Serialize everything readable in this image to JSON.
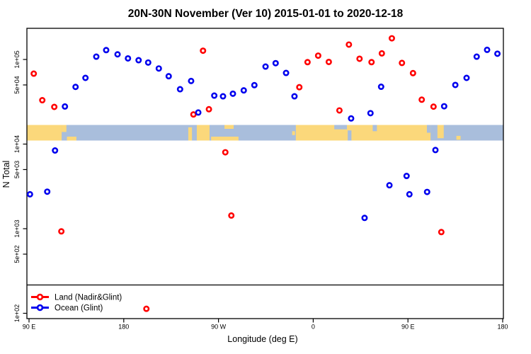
{
  "header": {
    "title": "20N-30N November (Ver 10)   2015-01-01 to 2020-12-18"
  },
  "axis": {
    "x": {
      "label": "Longitude (deg E)"
    },
    "y": {
      "label": "N Total"
    }
  },
  "legend": {
    "items": [
      {
        "label": "Land (Nadir&Glint)",
        "color": "#ff0000"
      },
      {
        "label": "Ocean (Glint)",
        "color": "#0000ee"
      }
    ]
  },
  "colors": {
    "land_point": "#ff0000",
    "ocean_point": "#0000ee",
    "map_land": "#fbd87b",
    "map_ocean": "#a9bedc",
    "frame": "#000000"
  },
  "chart_data": {
    "type": "scatter",
    "title": "20N-30N November (Ver 10)   2015-01-01 to 2020-12-18",
    "xlabel": "Longitude (deg E)",
    "ylabel": "N Total",
    "x_axis": {
      "units": "deg E (wrapping eastward)",
      "range": [
        90,
        540
      ],
      "ticks": [
        {
          "lon": 90,
          "label": "90 E"
        },
        {
          "lon": 180,
          "label": "180"
        },
        {
          "lon": 270,
          "label": "90 W"
        },
        {
          "lon": 360,
          "label": "0"
        },
        {
          "lon": 450,
          "label": "90 E"
        },
        {
          "lon": 540,
          "label": "180"
        }
      ]
    },
    "y_axis": {
      "scale": "log10",
      "ticks": [
        {
          "value": 100000,
          "label": "1e+05"
        },
        {
          "value": 50000,
          "label": "5e+04"
        },
        {
          "value": 10000,
          "label": "1e+04"
        },
        {
          "value": 5000,
          "label": "5e+03"
        },
        {
          "value": 1000,
          "label": "1e+03"
        },
        {
          "value": 500,
          "label": "5e+02"
        },
        {
          "value": 100,
          "label": "1e+02"
        }
      ]
    },
    "series": [
      {
        "name": "Land (Nadir&Glint)",
        "color": "#ff0000",
        "marker": "open-circle",
        "points": [
          {
            "lon": 94.5,
            "n": 68000
          },
          {
            "lon": 102.6,
            "n": 33000
          },
          {
            "lon": 114.0,
            "n": 27500
          },
          {
            "lon": 120.7,
            "n": 930
          },
          {
            "lon": 201.5,
            "n": 113
          },
          {
            "lon": 246.2,
            "n": 22400
          },
          {
            "lon": 255.3,
            "n": 127000
          },
          {
            "lon": 260.9,
            "n": 25800
          },
          {
            "lon": 276.5,
            "n": 8000
          },
          {
            "lon": 282.2,
            "n": 1430
          },
          {
            "lon": 346.8,
            "n": 47000
          },
          {
            "lon": 354.6,
            "n": 93000
          },
          {
            "lon": 364.7,
            "n": 111000
          },
          {
            "lon": 374.8,
            "n": 93500
          },
          {
            "lon": 384.9,
            "n": 25000
          },
          {
            "lon": 393.9,
            "n": 150000
          },
          {
            "lon": 404.0,
            "n": 102000
          },
          {
            "lon": 415.4,
            "n": 93000
          },
          {
            "lon": 425.2,
            "n": 118000
          },
          {
            "lon": 434.7,
            "n": 178000
          },
          {
            "lon": 444.3,
            "n": 91000
          },
          {
            "lon": 454.8,
            "n": 69000
          },
          {
            "lon": 463.1,
            "n": 33500
          },
          {
            "lon": 474.3,
            "n": 27700
          },
          {
            "lon": 481.7,
            "n": 912
          }
        ]
      },
      {
        "name": "Ocean (Glint)",
        "color": "#0000ee",
        "marker": "open-circle",
        "points": [
          {
            "lon": 90.9,
            "n": 2550
          },
          {
            "lon": 107.3,
            "n": 2740
          },
          {
            "lon": 114.7,
            "n": 8400
          },
          {
            "lon": 124.1,
            "n": 27800
          },
          {
            "lon": 134.2,
            "n": 47400
          },
          {
            "lon": 143.6,
            "n": 60600
          },
          {
            "lon": 153.9,
            "n": 108000
          },
          {
            "lon": 163.3,
            "n": 129000
          },
          {
            "lon": 174.1,
            "n": 115000
          },
          {
            "lon": 184.0,
            "n": 103000
          },
          {
            "lon": 194.1,
            "n": 98000
          },
          {
            "lon": 203.2,
            "n": 92000
          },
          {
            "lon": 213.3,
            "n": 78300
          },
          {
            "lon": 222.7,
            "n": 63400
          },
          {
            "lon": 233.5,
            "n": 44500
          },
          {
            "lon": 244.0,
            "n": 55700
          },
          {
            "lon": 250.8,
            "n": 23600
          },
          {
            "lon": 266.0,
            "n": 37400
          },
          {
            "lon": 274.3,
            "n": 36700
          },
          {
            "lon": 283.7,
            "n": 39400
          },
          {
            "lon": 294.0,
            "n": 43100
          },
          {
            "lon": 304.1,
            "n": 49700
          },
          {
            "lon": 314.7,
            "n": 82400
          },
          {
            "lon": 324.3,
            "n": 90400
          },
          {
            "lon": 334.2,
            "n": 69300
          },
          {
            "lon": 342.2,
            "n": 36700
          },
          {
            "lon": 396.0,
            "n": 20100
          },
          {
            "lon": 408.8,
            "n": 1340
          },
          {
            "lon": 414.4,
            "n": 23200
          },
          {
            "lon": 424.5,
            "n": 47600
          },
          {
            "lon": 432.4,
            "n": 3260
          },
          {
            "lon": 448.7,
            "n": 4200
          },
          {
            "lon": 451.4,
            "n": 2550
          },
          {
            "lon": 468.2,
            "n": 2720
          },
          {
            "lon": 476.1,
            "n": 8500
          },
          {
            "lon": 484.4,
            "n": 28000
          },
          {
            "lon": 495.0,
            "n": 50000
          },
          {
            "lon": 505.7,
            "n": 60600
          },
          {
            "lon": 515.3,
            "n": 108000
          },
          {
            "lon": 525.2,
            "n": 130000
          },
          {
            "lon": 535.0,
            "n": 117000
          }
        ]
      }
    ],
    "map_strip": {
      "description": "land/ocean band for 20N-30N drawn across plot",
      "ocean_color": "#a9bedc",
      "land_color": "#fbd87b",
      "land_segments": [
        {
          "lon": [
            88.0,
            121.0
          ],
          "frac": [
            0,
            1
          ]
        },
        {
          "lon": [
            121.0,
            125.5
          ],
          "frac": [
            0,
            0.45
          ]
        },
        {
          "lon": [
            126.0,
            135.0
          ],
          "frac": [
            0.75,
            1
          ]
        },
        {
          "lon": [
            241.3,
            244.8
          ],
          "frac": [
            0.15,
            1
          ]
        },
        {
          "lon": [
            249.4,
            261.5
          ],
          "frac": [
            0,
            1
          ]
        },
        {
          "lon": [
            263.0,
            289.0
          ],
          "frac": [
            0.75,
            1
          ]
        },
        {
          "lon": [
            275.7,
            284.4
          ],
          "frac": [
            0,
            0.25
          ]
        },
        {
          "lon": [
            340.0,
            342.7
          ],
          "frac": [
            0.4,
            0.65
          ]
        },
        {
          "lon": [
            343.5,
            471.5
          ],
          "frac": [
            0,
            1
          ]
        },
        {
          "lon": [
            478.0,
            484.0
          ],
          "frac": [
            0,
            0.85
          ]
        },
        {
          "lon": [
            496.0,
            500.0
          ],
          "frac": [
            0.7,
            0.95
          ]
        }
      ],
      "ocean_notches": [
        {
          "lon": [
            380.0,
            392.0
          ],
          "frac": [
            0,
            0.28
          ]
        },
        {
          "lon": [
            392.8,
            396.3
          ],
          "frac": [
            0.35,
            1
          ]
        },
        {
          "lon": [
            416.5,
            420.5
          ],
          "frac": [
            0,
            0.4
          ]
        },
        {
          "lon": [
            468.0,
            471.5
          ],
          "frac": [
            0,
            0.5
          ]
        }
      ]
    }
  }
}
